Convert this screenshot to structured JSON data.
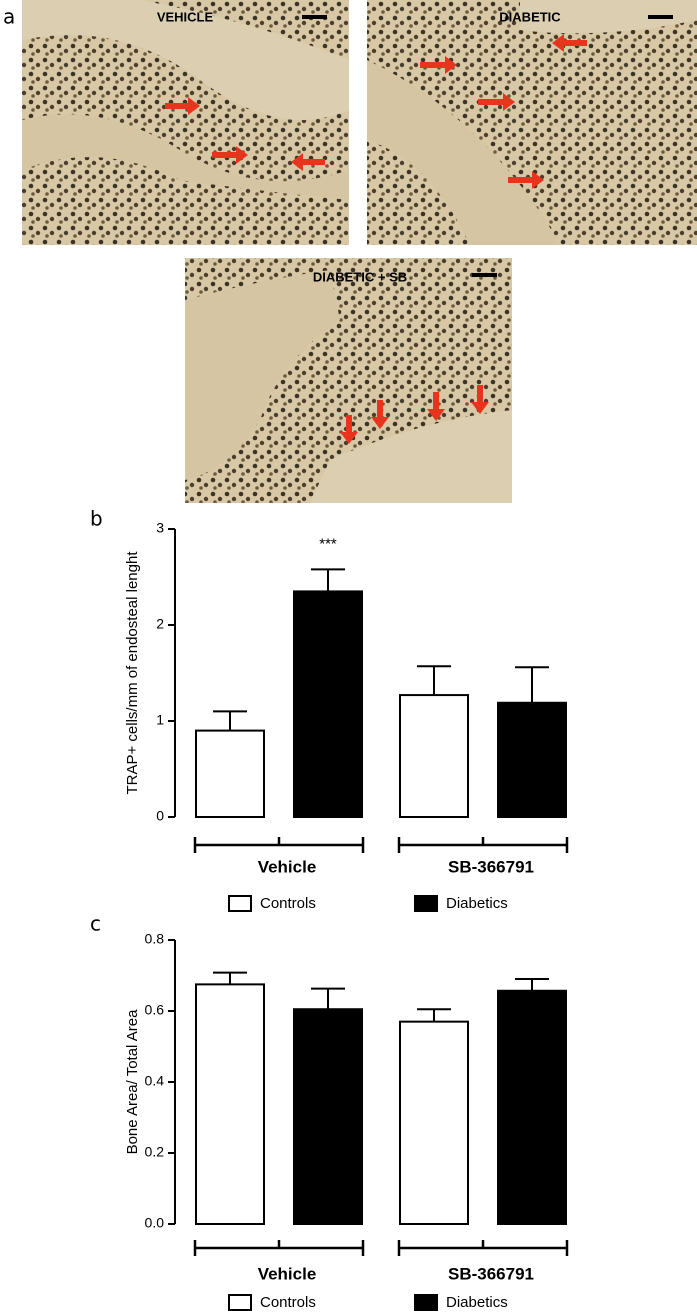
{
  "panel_letters": [
    "a",
    "b",
    "c"
  ],
  "micrographs": [
    {
      "label": "VEHICLE"
    },
    {
      "label": "DIABETIC"
    },
    {
      "label": "DIABETIC + SB"
    }
  ],
  "chart_data": [
    {
      "type": "bar",
      "ylabel": "TRAP+ cells/mm of endosteal lenght",
      "categories": [
        "Vehicle",
        "SB-366791"
      ],
      "series": [
        {
          "name": "Controls",
          "color": "#ffffff",
          "values": [
            0.9,
            1.27
          ],
          "errors": [
            0.2,
            0.3
          ]
        },
        {
          "name": "Diabetics",
          "color": "#000000",
          "values": [
            2.35,
            1.19
          ],
          "errors": [
            0.23,
            0.37
          ]
        }
      ],
      "annotation": "***",
      "ylim": [
        0,
        3
      ],
      "yticks": [
        0,
        1,
        2,
        3
      ]
    },
    {
      "type": "bar",
      "ylabel": "Bone Area/ Total Area",
      "categories": [
        "Vehicle",
        "SB-366791"
      ],
      "series": [
        {
          "name": "Controls",
          "color": "#ffffff",
          "values": [
            0.675,
            0.57
          ],
          "errors": [
            0.033,
            0.035
          ]
        },
        {
          "name": "Diabetics",
          "color": "#000000",
          "values": [
            0.605,
            0.657
          ],
          "errors": [
            0.058,
            0.033
          ]
        }
      ],
      "ylim": [
        0,
        0.8
      ],
      "yticks": [
        {
          "value": 0,
          "label": "0.0"
        },
        0.2,
        0.4,
        0.6,
        0.8
      ]
    }
  ]
}
